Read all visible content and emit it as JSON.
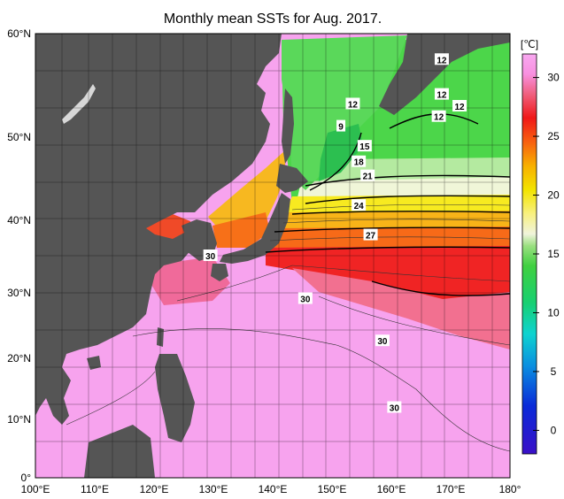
{
  "title": "Monthly mean SSTs for Aug. 2017.",
  "unit": "[℃]",
  "lat_labels": [
    "60°N",
    "50°N",
    "40°N",
    "30°N",
    "20°N",
    "10°N",
    "0°"
  ],
  "lon_labels": [
    "100°E",
    "110°E",
    "120°E",
    "130°E",
    "140°E",
    "150°E",
    "160°E",
    "170°E",
    "180°"
  ],
  "colorbar_ticks": [
    "30",
    "25",
    "20",
    "15",
    "10",
    "5",
    "0"
  ],
  "colorbar_values": [
    30,
    25,
    20,
    15,
    10,
    5,
    0
  ],
  "colorbar_range": [
    -2,
    32
  ],
  "lon_range": [
    100,
    180
  ],
  "lat_range": [
    0,
    60
  ],
  "contour_labels": [
    {
      "text": "12",
      "lon": 168.5,
      "lat": 56.5
    },
    {
      "text": "12",
      "lon": 153.5,
      "lat": 50.5
    },
    {
      "text": "12",
      "lon": 168.5,
      "lat": 51.8
    },
    {
      "text": "12",
      "lon": 171.5,
      "lat": 50.2
    },
    {
      "text": "12",
      "lon": 168.0,
      "lat": 48.8
    },
    {
      "text": "9",
      "lon": 151.5,
      "lat": 47.5
    },
    {
      "text": "15",
      "lon": 155.5,
      "lat": 44.8
    },
    {
      "text": "18",
      "lon": 154.5,
      "lat": 42.7
    },
    {
      "text": "21",
      "lon": 156.0,
      "lat": 40.8
    },
    {
      "text": "24",
      "lon": 154.5,
      "lat": 36.8
    },
    {
      "text": "27",
      "lon": 156.5,
      "lat": 32.8
    },
    {
      "text": "30",
      "lon": 129.5,
      "lat": 30.0
    },
    {
      "text": "30",
      "lon": 145.5,
      "lat": 24.2
    },
    {
      "text": "30",
      "lon": 158.5,
      "lat": 18.5
    },
    {
      "text": "30",
      "lon": 160.5,
      "lat": 9.5
    }
  ]
}
